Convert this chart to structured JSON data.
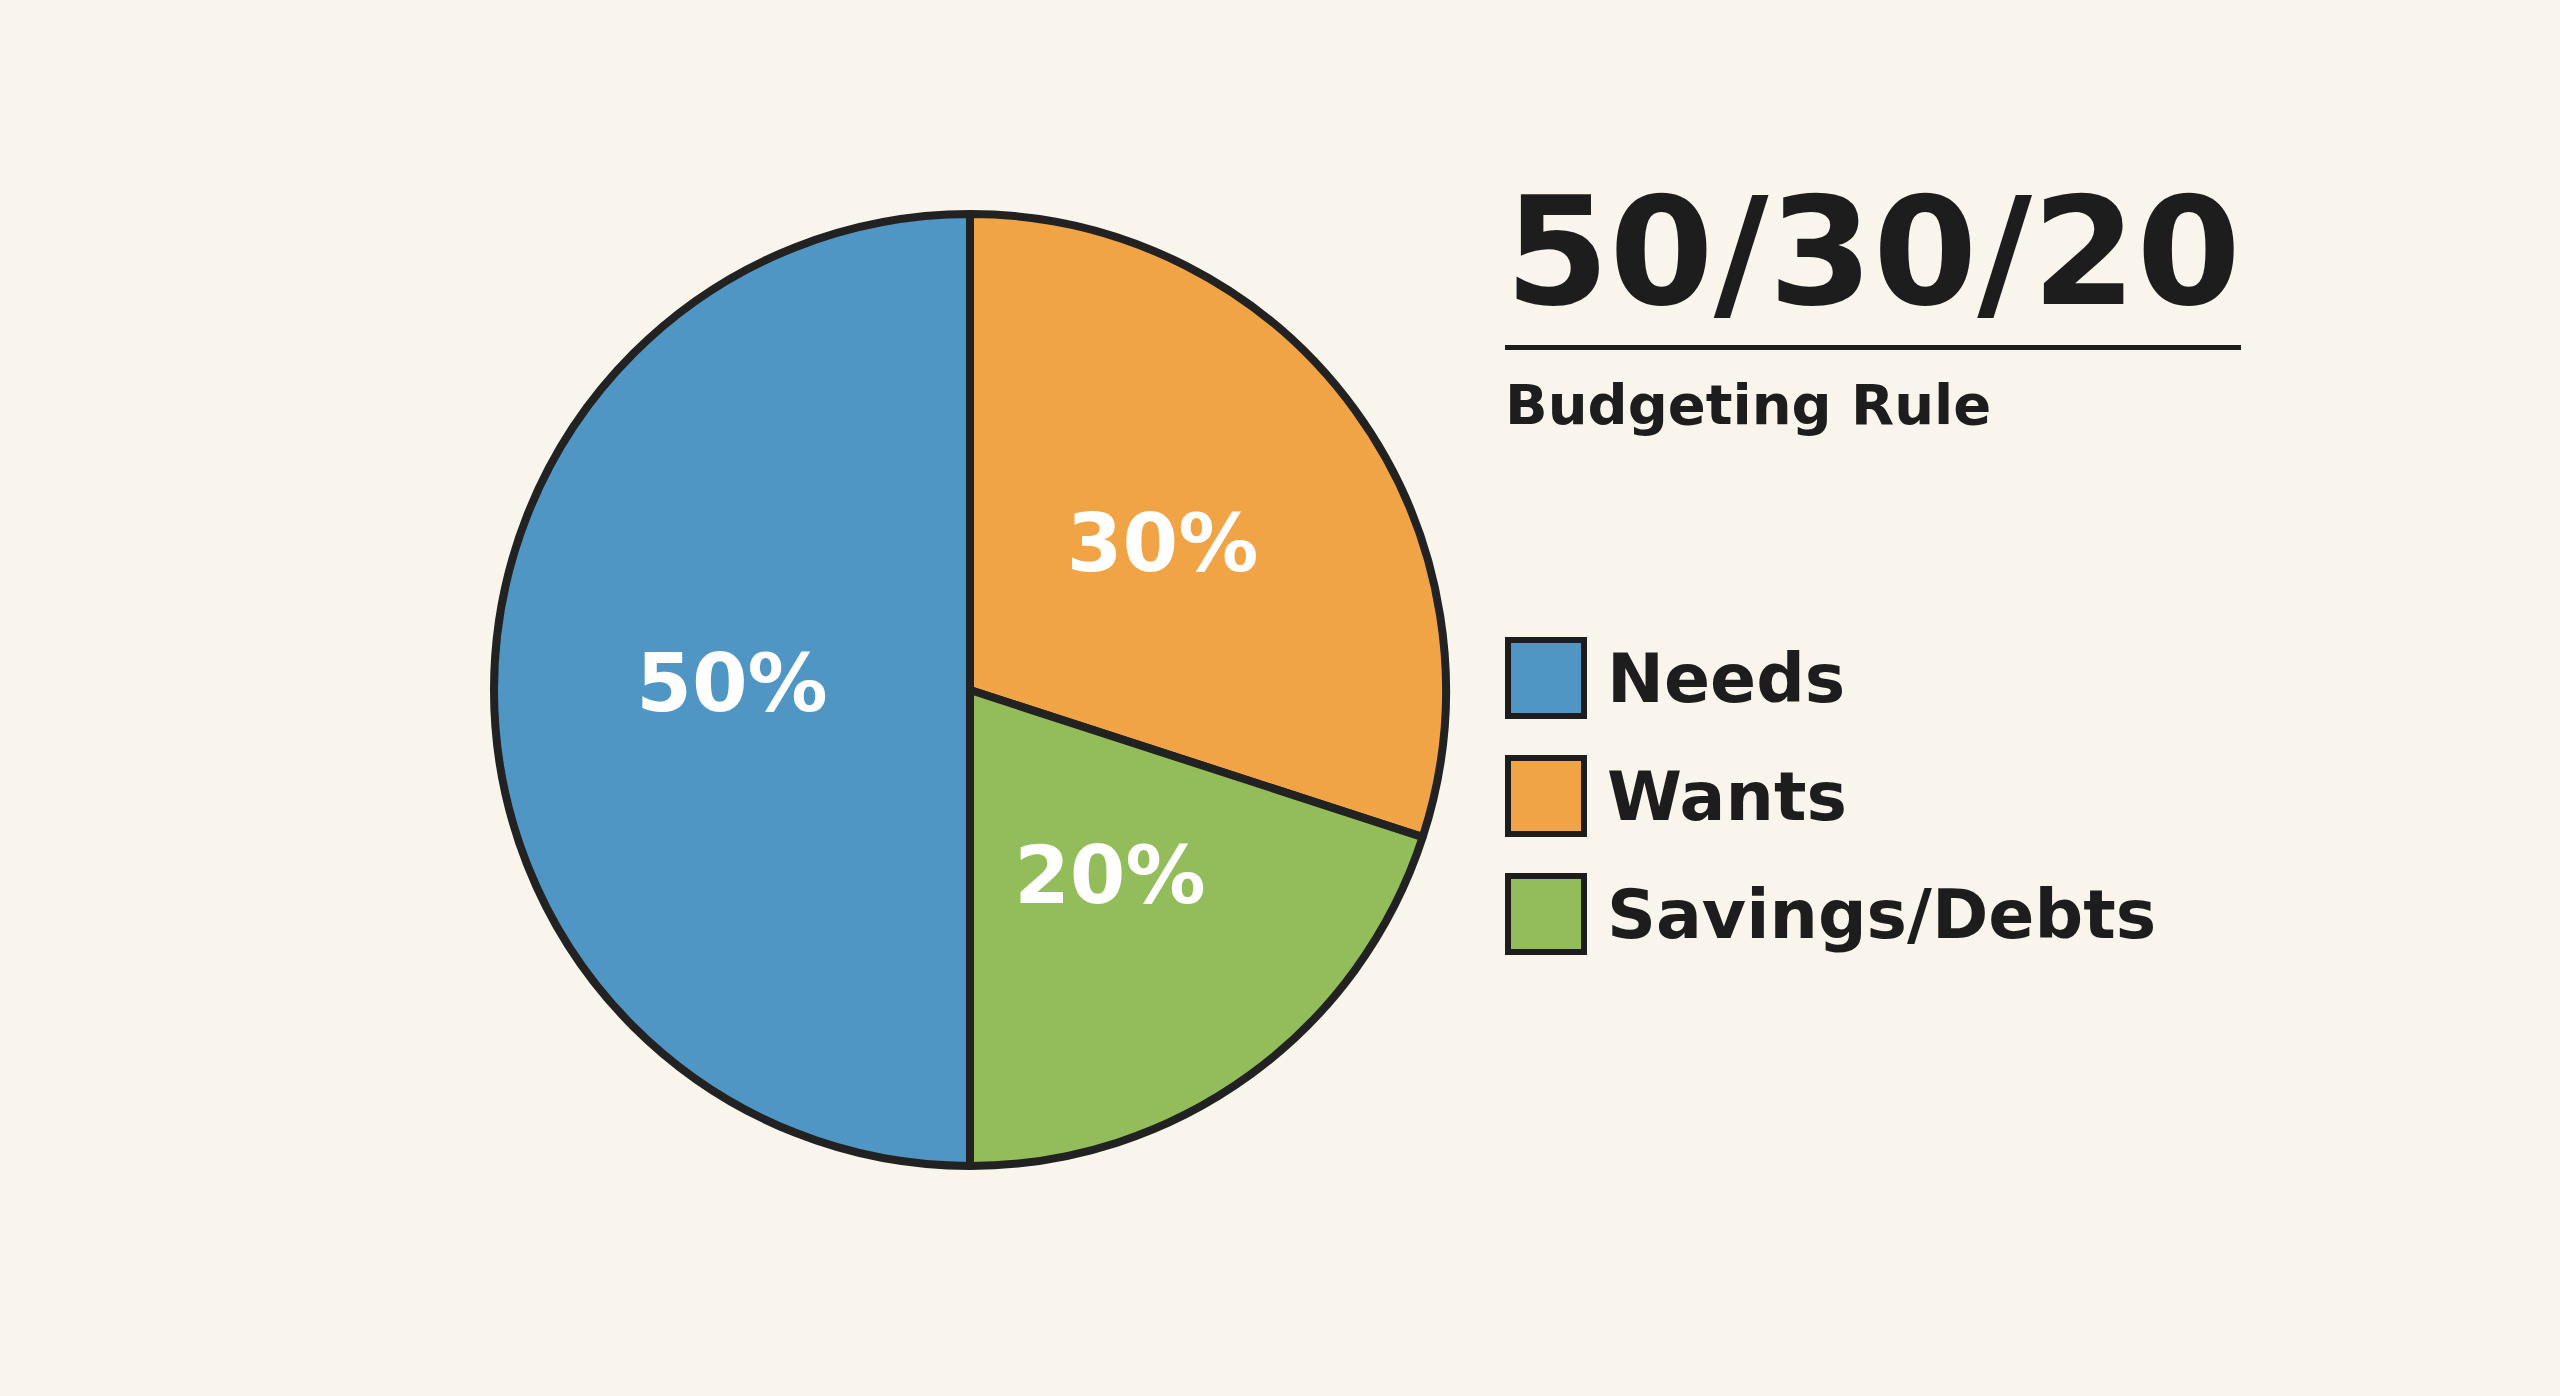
{
  "chart_data": {
    "type": "pie",
    "title": "50/30/20",
    "subtitle": "Budgeting Rule",
    "categories": [
      "Needs",
      "Wants",
      "Savings/Debts"
    ],
    "values": [
      50,
      30,
      20
    ],
    "colors": [
      "#4f96c4",
      "#f0a445",
      "#93bd5a"
    ],
    "value_labels": [
      "50%",
      "30%",
      "20%"
    ],
    "legend": "right"
  }
}
